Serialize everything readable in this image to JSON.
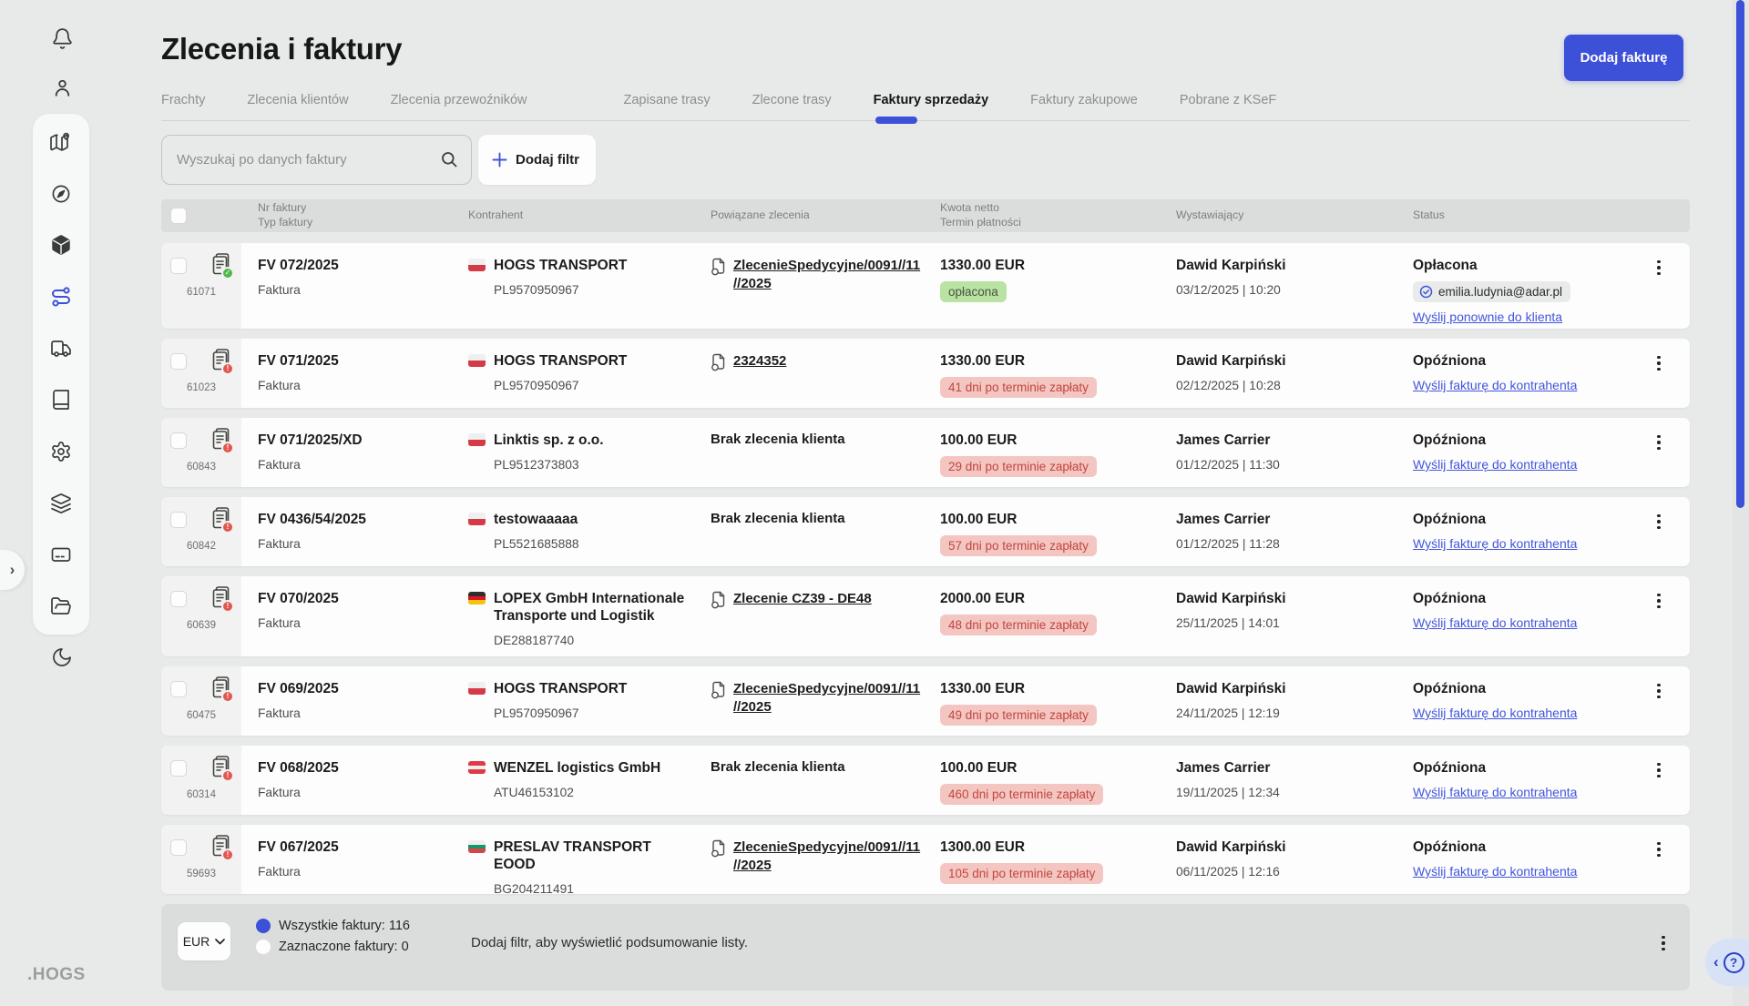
{
  "app": {
    "logo": ".HOGS",
    "accent": "#3c50d8",
    "link_color": "#4155dc"
  },
  "sidebar": {
    "top_icons": [
      "notifications-bell",
      "user-profile"
    ],
    "panel_icons": [
      "map",
      "compass-navigation",
      "packages",
      "routes-active",
      "truck-fleet",
      "book-registry",
      "settings-gear",
      "layers-stack",
      "payment-card",
      "files-folder"
    ],
    "bottom_icon": "dark-mode-moon",
    "expand_glyph": "›"
  },
  "header": {
    "title": "Zlecenia i faktury",
    "add_invoice_button": "Dodaj fakturę"
  },
  "tabs": [
    {
      "label": "Frachty",
      "active": false
    },
    {
      "label": "Zlecenia klientów",
      "active": false
    },
    {
      "label": "Zlecenia przewoźników",
      "active": false
    },
    {
      "label": "Zapisane trasy",
      "active": false
    },
    {
      "label": "Zlecone trasy",
      "active": false
    },
    {
      "label": "Faktury sprzedaży",
      "active": true
    },
    {
      "label": "Faktury zakupowe",
      "active": false
    },
    {
      "label": "Pobrane z KSeF",
      "active": false
    }
  ],
  "toolbar": {
    "search_placeholder": "Wyszukaj po danych faktury",
    "add_filter_label": "Dodaj filtr"
  },
  "table": {
    "headers": {
      "invoice": [
        "Nr faktury",
        "Typ faktury"
      ],
      "contractor": "Kontrahent",
      "orders": "Powiązane zlecenia",
      "amount": [
        "Kwota netto",
        "Termin płatności"
      ],
      "issuer": "Wystawiający",
      "status": "Status"
    }
  },
  "flags": {
    "pl": [
      "#eef0ef",
      "#d53a47"
    ],
    "de": [
      "#2e2e2e",
      "#dd1620",
      "#f2c40f"
    ],
    "at": [
      "#dd3c47",
      "#eef0ef",
      "#dd3c47"
    ],
    "bg": [
      "#eef0ef",
      "#159570",
      "#d64545"
    ]
  },
  "rows": [
    {
      "id": "61071",
      "number": "FV 072/2025",
      "type": "Faktura",
      "doc_badge": "ok",
      "flag": "pl",
      "contractor": "HOGS TRANSPORT",
      "vat": "PL9570950967",
      "order": {
        "kind": "link",
        "lines": [
          "ZlecenieSpedycyjne/0091//11",
          "//2025"
        ]
      },
      "amount": "1330.00 EUR",
      "badge": {
        "text": "opłacona",
        "kind": "paid"
      },
      "issuer": "Dawid Karpiński",
      "issued": "03/12/2025 | 10:20",
      "status": "Opłacona",
      "status_chip": "emilia.ludynia@adar.pl",
      "status_link": "Wyślij ponownie do klienta"
    },
    {
      "id": "61023",
      "number": "FV 071/2025",
      "type": "Faktura",
      "doc_badge": "alert",
      "flag": "pl",
      "contractor": "HOGS TRANSPORT",
      "vat": "PL9570950967",
      "order": {
        "kind": "link",
        "lines": [
          "2324352"
        ]
      },
      "amount": "1330.00 EUR",
      "badge": {
        "text": "41 dni po terminie zapłaty",
        "kind": "overdue"
      },
      "issuer": "Dawid Karpiński",
      "issued": "02/12/2025 | 10:28",
      "status": "Opóźniona",
      "status_link": "Wyślij fakturę do kontrahenta"
    },
    {
      "id": "60843",
      "number": "FV 071/2025/XD",
      "type": "Faktura",
      "doc_badge": "alert",
      "flag": "pl",
      "contractor": "Linktis sp. z o.o.",
      "vat": "PL9512373803",
      "order": {
        "kind": "none",
        "lines": [
          "Brak zlecenia klienta"
        ]
      },
      "amount": "100.00 EUR",
      "badge": {
        "text": "29 dni po terminie zapłaty",
        "kind": "overdue"
      },
      "issuer": "James Carrier",
      "issued": "01/12/2025 | 11:30",
      "status": "Opóźniona",
      "status_link": "Wyślij fakturę do kontrahenta"
    },
    {
      "id": "60842",
      "number": "FV 0436/54/2025",
      "type": "Faktura",
      "doc_badge": "alert",
      "flag": "pl",
      "contractor": "testowaaaaa",
      "vat": "PL5521685888",
      "order": {
        "kind": "none",
        "lines": [
          "Brak zlecenia klienta"
        ]
      },
      "amount": "100.00 EUR",
      "badge": {
        "text": "57 dni po terminie zapłaty",
        "kind": "overdue"
      },
      "issuer": "James Carrier",
      "issued": "01/12/2025 | 11:28",
      "status": "Opóźniona",
      "status_link": "Wyślij fakturę do kontrahenta"
    },
    {
      "id": "60639",
      "number": "FV 070/2025",
      "type": "Faktura",
      "doc_badge": "alert",
      "flag": "de",
      "contractor": "LOPEX GmbH Internationale Transporte und Logistik",
      "vat": "DE288187740",
      "order": {
        "kind": "link",
        "lines": [
          "Zlecenie CZ39 - DE48"
        ]
      },
      "amount": "2000.00 EUR",
      "badge": {
        "text": "48 dni po terminie zapłaty",
        "kind": "overdue"
      },
      "issuer": "Dawid Karpiński",
      "issued": "25/11/2025 | 14:01",
      "status": "Opóźniona",
      "status_link": "Wyślij fakturę do kontrahenta"
    },
    {
      "id": "60475",
      "number": "FV 069/2025",
      "type": "Faktura",
      "doc_badge": "alert",
      "flag": "pl",
      "contractor": "HOGS TRANSPORT",
      "vat": "PL9570950967",
      "order": {
        "kind": "link",
        "lines": [
          "ZlecenieSpedycyjne/0091//11",
          "//2025"
        ]
      },
      "amount": "1330.00 EUR",
      "badge": {
        "text": "49 dni po terminie zapłaty",
        "kind": "overdue"
      },
      "issuer": "Dawid Karpiński",
      "issued": "24/11/2025 | 12:19",
      "status": "Opóźniona",
      "status_link": "Wyślij fakturę do kontrahenta"
    },
    {
      "id": "60314",
      "number": "FV 068/2025",
      "type": "Faktura",
      "doc_badge": "alert",
      "flag": "at",
      "contractor": "WENZEL logistics GmbH",
      "vat": "ATU46153102",
      "order": {
        "kind": "none",
        "lines": [
          "Brak zlecenia klienta"
        ]
      },
      "amount": "100.00 EUR",
      "badge": {
        "text": "460 dni po terminie zapłaty",
        "kind": "overdue"
      },
      "issuer": "James Carrier",
      "issued": "19/11/2025 | 12:34",
      "status": "Opóźniona",
      "status_link": "Wyślij fakturę do kontrahenta"
    },
    {
      "id": "59693",
      "number": "FV 067/2025",
      "type": "Faktura",
      "doc_badge": "alert",
      "flag": "bg",
      "contractor": "PRESLAV TRANSPORT EOOD",
      "vat": "BG204211491",
      "order": {
        "kind": "link",
        "lines": [
          "ZlecenieSpedycyjne/0091//11",
          "//2025"
        ]
      },
      "amount": "1300.00 EUR",
      "badge": {
        "text": "105 dni po terminie zapłaty",
        "kind": "overdue"
      },
      "issuer": "Dawid Karpiński",
      "issued": "06/11/2025 | 12:16",
      "status": "Opóźniona",
      "status_link": "Wyślij fakturę do kontrahenta"
    }
  ],
  "footer": {
    "currency": "EUR",
    "radio_all": "Wszystkie faktury: 116",
    "radio_all_checked": true,
    "radio_selected": "Zaznaczone faktury: 0",
    "note": "Dodaj filtr, aby wyświetlić podsumowanie listy."
  },
  "help": {
    "collapse_glyph": "‹",
    "help_glyph": "?"
  }
}
